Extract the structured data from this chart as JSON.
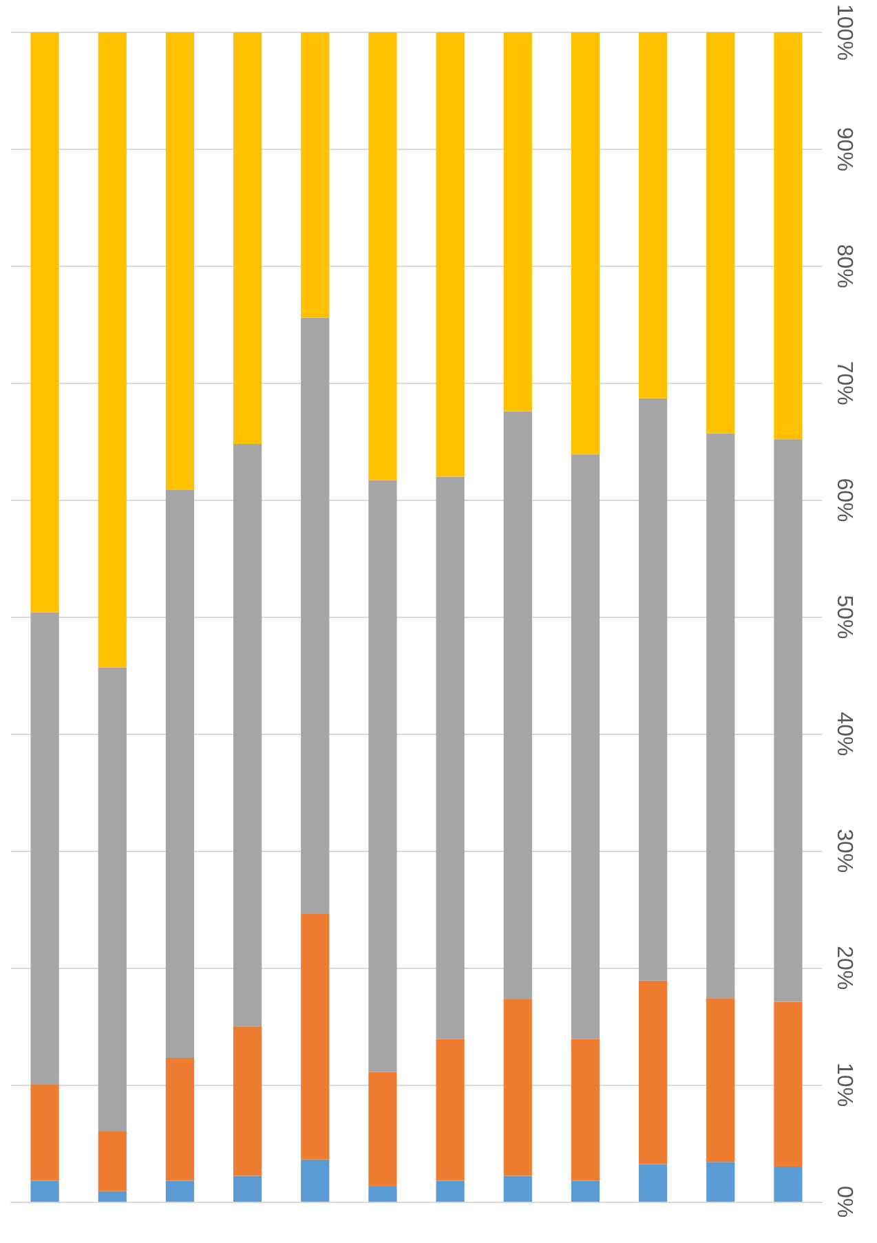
{
  "chart_data": {
    "type": "bar",
    "stacked": true,
    "categories": [
      null,
      null,
      null,
      null,
      null,
      null,
      null,
      null,
      null,
      null,
      null,
      null
    ],
    "series": [
      {
        "color": "#5b9bd5",
        "values": [
          1.8,
          0.9,
          1.8,
          2.2,
          3.6,
          1.3,
          1.8,
          2.2,
          1.8,
          3.2,
          3.4,
          3.0
        ]
      },
      {
        "color": "#ed7d31",
        "values": [
          8.2,
          5.1,
          10.5,
          12.8,
          21.0,
          9.8,
          12.1,
          15.1,
          12.1,
          15.7,
          14.0,
          14.1
        ]
      },
      {
        "color": "#a5a5a5",
        "values": [
          40.4,
          39.7,
          48.6,
          49.8,
          51.0,
          50.6,
          48.1,
          50.3,
          50.0,
          49.8,
          48.3,
          48.1
        ]
      },
      {
        "color": "#ffc000",
        "values": [
          49.6,
          54.3,
          39.1,
          35.2,
          24.4,
          38.3,
          38.0,
          32.4,
          36.1,
          31.3,
          34.3,
          34.8
        ]
      }
    ],
    "ylim": [
      0,
      100
    ],
    "yticks": [
      {
        "value": 0,
        "label": "0%"
      },
      {
        "value": 10,
        "label": "10%"
      },
      {
        "value": 20,
        "label": "20%"
      },
      {
        "value": 30,
        "label": "30%"
      },
      {
        "value": 40,
        "label": "40%"
      },
      {
        "value": 50,
        "label": "50%"
      },
      {
        "value": 60,
        "label": "60%"
      },
      {
        "value": 70,
        "label": "70%"
      },
      {
        "value": 80,
        "label": "80%"
      },
      {
        "value": 90,
        "label": "90%"
      },
      {
        "value": 100,
        "label": "100%"
      }
    ],
    "grid": "y"
  }
}
